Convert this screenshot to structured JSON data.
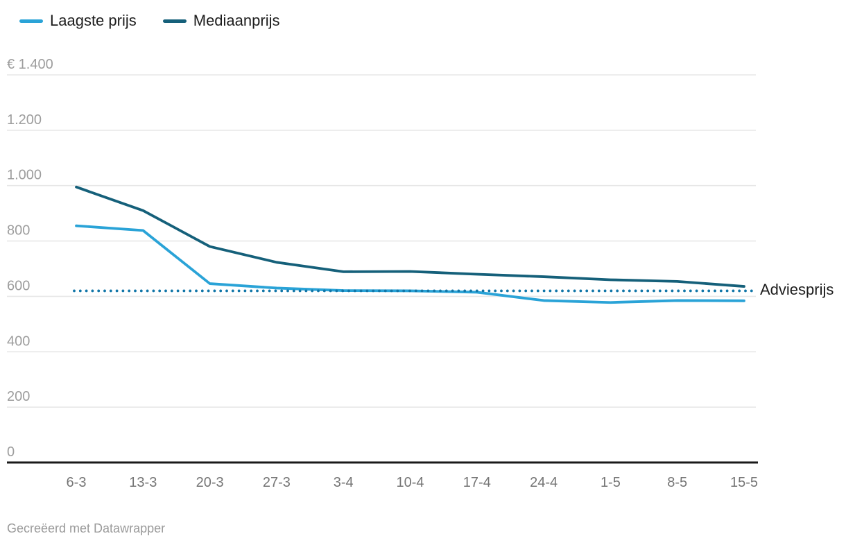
{
  "legend": {
    "items": [
      {
        "label": "Laagste prijs",
        "color": "#2aa3d7"
      },
      {
        "label": "Mediaanprijs",
        "color": "#15607a"
      }
    ]
  },
  "annotation": {
    "label": "Adviesprijs"
  },
  "footer": {
    "text": "Gecreëerd met Datawrapper"
  },
  "chart_data": {
    "type": "line",
    "title": "",
    "xlabel": "",
    "ylabel": "",
    "categories": [
      "6-3",
      "13-3",
      "20-3",
      "27-3",
      "3-4",
      "10-4",
      "17-4",
      "24-4",
      "1-5",
      "8-5",
      "15-5"
    ],
    "series": [
      {
        "name": "Laagste prijs",
        "color": "#2aa3d7",
        "values": [
          855,
          838,
          646,
          630,
          621,
          620,
          615,
          585,
          578,
          585,
          584
        ]
      },
      {
        "name": "Mediaanprijs",
        "color": "#15607a",
        "values": [
          995,
          910,
          780,
          723,
          689,
          690,
          680,
          671,
          660,
          654,
          636
        ]
      }
    ],
    "reference_line": {
      "label": "Adviesprijs",
      "value": 620,
      "color": "#1176a8",
      "style": "dotted"
    },
    "ylim": [
      0,
      1400
    ],
    "y_ticks": [
      {
        "value": 0,
        "label": "0"
      },
      {
        "value": 200,
        "label": "200"
      },
      {
        "value": 400,
        "label": "400"
      },
      {
        "value": 600,
        "label": "600"
      },
      {
        "value": 800,
        "label": "800"
      },
      {
        "value": 1000,
        "label": "1.000"
      },
      {
        "value": 1200,
        "label": "1.200"
      },
      {
        "value": 1400,
        "label": "€ 1.400"
      }
    ],
    "grid": "horizontal",
    "legend_position": "top-left"
  },
  "colors": {
    "background": "#ffffff",
    "gridline": "#e7e7e7",
    "axis": "#1a1a1a",
    "y_tick_label": "#9d9d9d",
    "x_tick_label": "#757575",
    "legend_text": "#1d1d1d",
    "footer_text": "#9a9a9a",
    "annotation_text": "#1d1d1d"
  }
}
